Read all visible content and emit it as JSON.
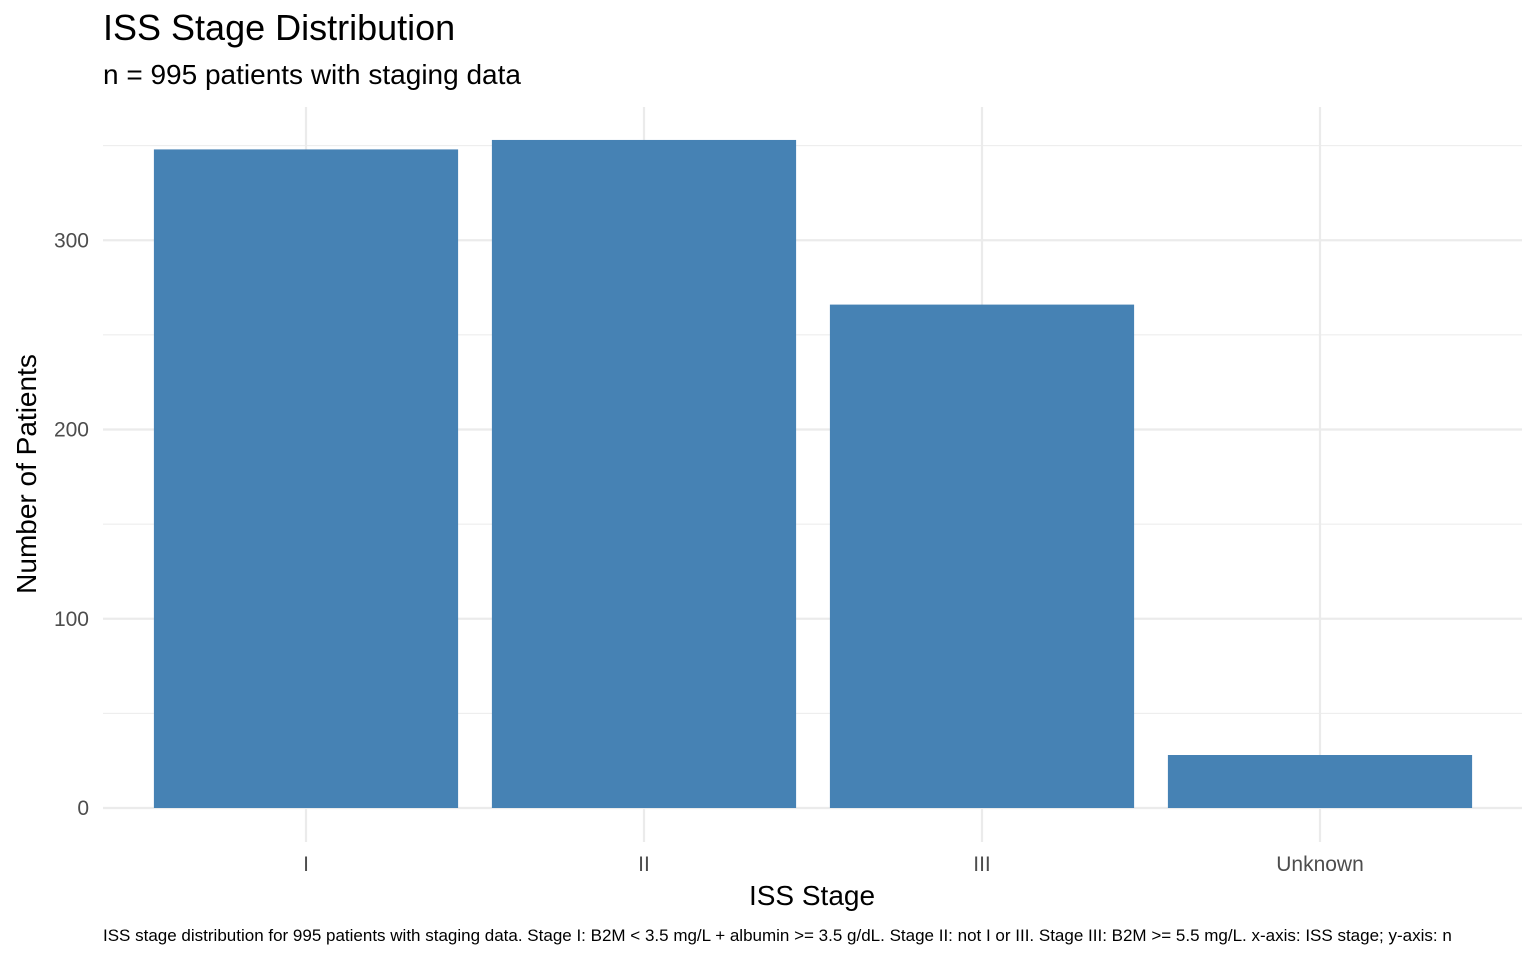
{
  "chart_data": {
    "type": "bar",
    "title": "ISS Stage Distribution",
    "subtitle": "n = 995 patients with staging data",
    "xlabel": "ISS Stage",
    "ylabel": "Number of Patients",
    "caption": "ISS stage distribution for 995 patients with staging data. Stage I: B2M < 3.5 mg/L + albumin >= 3.5 g/dL. Stage II: not I or III. Stage III: B2M >= 5.5 mg/L. x-axis: ISS stage; y-axis: n",
    "categories": [
      "I",
      "II",
      "III",
      "Unknown"
    ],
    "values": [
      348,
      353,
      266,
      28
    ],
    "ylim": [
      0,
      350
    ],
    "yticks": [
      0,
      100,
      200,
      300
    ],
    "grid": true,
    "legend": "none",
    "bar_color": "#4682B4"
  }
}
